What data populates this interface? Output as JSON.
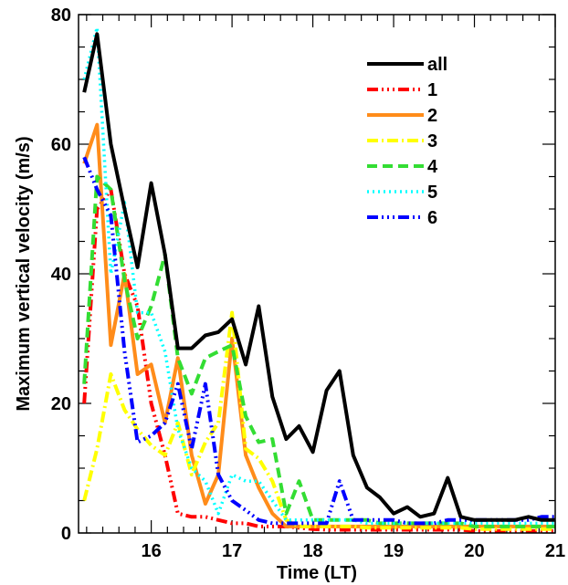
{
  "chart_data": {
    "type": "line",
    "title": "",
    "xlabel": "Time (LT)",
    "ylabel": "Maximum vertical velocity (m/s)",
    "xlim": [
      15.1,
      21
    ],
    "ylim": [
      0,
      80
    ],
    "xticks": [
      16,
      17,
      18,
      19,
      20,
      21
    ],
    "yticks": [
      0,
      20,
      40,
      60,
      80
    ],
    "legend_position": "top-right",
    "x": [
      15.17,
      15.33,
      15.5,
      15.67,
      15.83,
      16.0,
      16.17,
      16.33,
      16.5,
      16.67,
      16.83,
      17.0,
      17.17,
      17.33,
      17.5,
      17.67,
      17.83,
      18.0,
      18.17,
      18.33,
      18.5,
      18.67,
      18.83,
      19.0,
      19.17,
      19.33,
      19.5,
      19.67,
      19.83,
      20.0,
      20.17,
      20.33,
      20.5,
      20.67,
      20.83,
      21.0
    ],
    "series": [
      {
        "name": "all",
        "color": "#000000",
        "dash": "",
        "width": 4,
        "values": [
          68,
          77,
          60,
          50,
          41,
          54,
          43,
          28.5,
          28.5,
          30.5,
          31,
          33,
          26,
          35,
          21,
          14.5,
          16.5,
          12.5,
          22,
          25,
          12,
          7,
          5.5,
          3,
          4,
          2.5,
          3,
          8.5,
          2.5,
          2,
          2,
          2,
          2,
          2.5,
          2,
          2
        ]
      },
      {
        "name": "1",
        "color": "#ff0000",
        "dash": "12,4,2,4,2,4,2,4",
        "width": 4,
        "values": [
          20,
          50,
          53,
          40,
          35,
          20,
          12,
          3,
          2.5,
          2.5,
          2,
          1.5,
          1.5,
          1,
          1,
          1,
          0.8,
          0.6,
          0.5,
          0.5,
          0.5,
          0.5,
          0.5,
          0.5,
          0.5,
          0.5,
          0.5,
          0.5,
          0.5,
          0.3,
          0.3,
          0.3,
          0.3,
          0.3,
          0.3,
          0.3
        ]
      },
      {
        "name": "2",
        "color": "#ff8c1a",
        "dash": "",
        "width": 4,
        "values": [
          57,
          63,
          29,
          40,
          24.5,
          26,
          17,
          27,
          12,
          4.5,
          9,
          30,
          12,
          7,
          3,
          1,
          1,
          1,
          1,
          1,
          1,
          1,
          1,
          1,
          1,
          1,
          1,
          1,
          1,
          1,
          1,
          1,
          1,
          1,
          1,
          1
        ]
      },
      {
        "name": "3",
        "color": "#ffff00",
        "dash": "12,4,2,4",
        "width": 4,
        "values": [
          5,
          13,
          24.5,
          19,
          16,
          13.5,
          12,
          17,
          9,
          14,
          17,
          34,
          13,
          11.5,
          8,
          2,
          1,
          1,
          1,
          1,
          1,
          0.8,
          0.8,
          0.8,
          0.8,
          0.8,
          0.8,
          0.8,
          0.8,
          0.6,
          0.6,
          0.6,
          0.6,
          0.6,
          0.6,
          0.6
        ]
      },
      {
        "name": "4",
        "color": "#33dd33",
        "dash": "11,6",
        "width": 4,
        "values": [
          23,
          55,
          53,
          39,
          30,
          35,
          43,
          27,
          21.5,
          27,
          28,
          29,
          18,
          14,
          14.5,
          3,
          8,
          2,
          2,
          2,
          2,
          2,
          1.5,
          1.5,
          1.5,
          1.5,
          1.5,
          1.5,
          1.5,
          1,
          1,
          1,
          1,
          1,
          1,
          1
        ]
      },
      {
        "name": "5",
        "color": "#00ffff",
        "dash": "2,4",
        "width": 3.5,
        "values": [
          70,
          78,
          40,
          51,
          34,
          34,
          28,
          16,
          10,
          8,
          3,
          9,
          8,
          8,
          5,
          2,
          2,
          2,
          2,
          2,
          2,
          1.5,
          1.5,
          1.5,
          1.5,
          1.5,
          1.5,
          1.5,
          1.5,
          1.5,
          1.5,
          1.5,
          1.5,
          1.5,
          1.5,
          1.5
        ]
      },
      {
        "name": "6",
        "color": "#0000ff",
        "dash": "12,4,2,4,2,4,2,4",
        "width": 4,
        "values": [
          58,
          53,
          49,
          28,
          14,
          15,
          17,
          23,
          13,
          23,
          9,
          5,
          3.5,
          2,
          1.5,
          1.5,
          1.5,
          1.5,
          1.5,
          8,
          2,
          2,
          2,
          2,
          1.5,
          1.5,
          1.5,
          2,
          2,
          2,
          2,
          2,
          2,
          2,
          2.5,
          2.5
        ]
      }
    ]
  }
}
